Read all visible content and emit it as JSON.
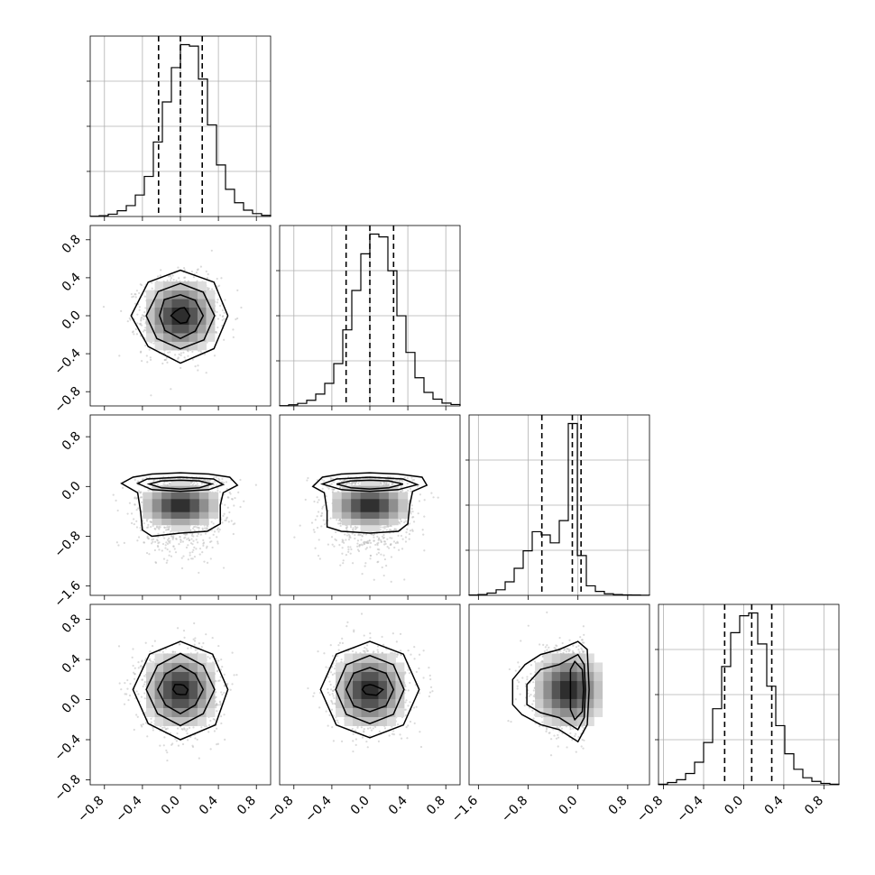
{
  "chart_data": {
    "type": "corner",
    "title": "",
    "n_params": 4,
    "ranges": [
      [
        -0.95,
        0.95
      ],
      [
        -0.95,
        0.95
      ],
      [
        -1.75,
        1.15
      ],
      [
        -0.85,
        0.95
      ]
    ],
    "ticks": [
      [
        -0.8,
        -0.4,
        0.0,
        0.4,
        0.8
      ],
      [
        -0.8,
        -0.4,
        0.0,
        0.4,
        0.8
      ],
      [
        -1.6,
        -0.8,
        0.0,
        0.8
      ],
      [
        -0.8,
        -0.4,
        0.0,
        0.4,
        0.8
      ]
    ],
    "tick_labels": [
      [
        "−0.8",
        "−0.4",
        "0.0",
        "0.4",
        "0.8"
      ],
      [
        "−0.8",
        "−0.4",
        "0.0",
        "0.4",
        "0.8"
      ],
      [
        "−1.6",
        "−0.8",
        "0.0",
        "0.8"
      ],
      [
        "−0.8",
        "−0.4",
        "0.0",
        "0.4",
        "0.8"
      ]
    ],
    "marginals": [
      {
        "param": 0,
        "bin_start": -0.95,
        "bin_width": 0.095,
        "counts": [
          1,
          3,
          8,
          20,
          38,
          75,
          140,
          260,
          400,
          520,
          600,
          595,
          480,
          320,
          180,
          95,
          48,
          22,
          10,
          4
        ],
        "quantiles": [
          -0.23,
          0.0,
          0.23
        ]
      },
      {
        "param": 1,
        "bin_start": -0.95,
        "bin_width": 0.095,
        "counts": [
          1,
          4,
          9,
          20,
          42,
          80,
          150,
          270,
          410,
          540,
          610,
          600,
          480,
          320,
          190,
          100,
          48,
          24,
          10,
          5
        ],
        "quantiles": [
          -0.25,
          0.0,
          0.25
        ]
      },
      {
        "param": 2,
        "bin_start": -1.75,
        "bin_width": 0.145,
        "counts": [
          2,
          5,
          14,
          35,
          85,
          170,
          280,
          400,
          380,
          330,
          470,
          1080,
          250,
          60,
          25,
          10,
          5,
          3,
          2,
          1
        ],
        "quantiles": [
          -0.58,
          -0.09,
          0.05
        ]
      },
      {
        "param": 3,
        "bin_start": -0.85,
        "bin_width": 0.09,
        "counts": [
          2,
          8,
          18,
          40,
          80,
          150,
          270,
          420,
          540,
          600,
          610,
          500,
          350,
          210,
          110,
          55,
          25,
          12,
          5,
          2
        ],
        "quantiles": [
          -0.19,
          0.08,
          0.28
        ]
      }
    ],
    "pairs": [
      {
        "x": 0,
        "y": 1,
        "mean": [
          0.0,
          0.0
        ],
        "sd": [
          0.2,
          0.2
        ],
        "contours": [
          {
            "rx": [
              0.5,
              0.5,
              0.44,
              0.48,
              0.52,
              0.48,
              0.46,
              0.5
            ],
            "ry": [
              0.52,
              0.5,
              0.48,
              0.5,
              0.48,
              0.46,
              0.5,
              0.49
            ]
          },
          {
            "rx": [
              0.36,
              0.34,
              0.35,
              0.33,
              0.36,
              0.35,
              0.34,
              0.35
            ],
            "ry": [
              0.36,
              0.35,
              0.34,
              0.36,
              0.35,
              0.34,
              0.35,
              0.36
            ]
          },
          {
            "rx": [
              0.24,
              0.22,
              0.23,
              0.24,
              0.22,
              0.23,
              0.24,
              0.22
            ],
            "ry": [
              0.24,
              0.23,
              0.22,
              0.24,
              0.23,
              0.22,
              0.24,
              0.23
            ]
          },
          {
            "rx": [
              0.1,
              0.06,
              0.05,
              0.08,
              0.1,
              0.07,
              0.05,
              0.09
            ],
            "ry": [
              0.1,
              0.12,
              0.08,
              0.06,
              0.05,
              0.06,
              0.08,
              0.1
            ]
          }
        ]
      },
      {
        "x": 0,
        "y": 2,
        "mean": [
          0.0,
          -0.3
        ],
        "sd": [
          0.22,
          0.35
        ],
        "contours": [
          {
            "pts": [
              [
                -0.62,
                0.05
              ],
              [
                -0.5,
                0.15
              ],
              [
                -0.3,
                0.2
              ],
              [
                0.0,
                0.22
              ],
              [
                0.3,
                0.2
              ],
              [
                0.52,
                0.15
              ],
              [
                0.6,
                0.02
              ],
              [
                0.45,
                -0.1
              ],
              [
                0.42,
                -0.3
              ],
              [
                0.42,
                -0.6
              ],
              [
                0.28,
                -0.72
              ],
              [
                0.0,
                -0.75
              ],
              [
                -0.3,
                -0.8
              ],
              [
                -0.4,
                -0.7
              ],
              [
                -0.42,
                -0.4
              ],
              [
                -0.45,
                -0.1
              ]
            ]
          },
          {
            "pts": [
              [
                -0.45,
                0.05
              ],
              [
                -0.35,
                0.12
              ],
              [
                0.0,
                0.15
              ],
              [
                0.35,
                0.12
              ],
              [
                0.45,
                0.03
              ],
              [
                0.3,
                -0.05
              ],
              [
                0.0,
                -0.08
              ],
              [
                -0.3,
                -0.05
              ]
            ]
          },
          {
            "pts": [
              [
                -0.33,
                0.04
              ],
              [
                -0.2,
                0.09
              ],
              [
                0.0,
                0.1
              ],
              [
                0.2,
                0.09
              ],
              [
                0.33,
                0.04
              ],
              [
                0.2,
                -0.02
              ],
              [
                0.0,
                -0.04
              ],
              [
                -0.2,
                -0.02
              ]
            ]
          }
        ]
      },
      {
        "x": 1,
        "y": 2,
        "mean": [
          0.0,
          -0.3
        ],
        "sd": [
          0.22,
          0.35
        ],
        "contours": [
          {
            "pts": [
              [
                -0.6,
                0.0
              ],
              [
                -0.5,
                0.15
              ],
              [
                -0.3,
                0.2
              ],
              [
                0.0,
                0.22
              ],
              [
                0.3,
                0.2
              ],
              [
                0.55,
                0.15
              ],
              [
                0.6,
                0.02
              ],
              [
                0.45,
                -0.08
              ],
              [
                0.42,
                -0.3
              ],
              [
                0.4,
                -0.6
              ],
              [
                0.3,
                -0.72
              ],
              [
                0.0,
                -0.75
              ],
              [
                -0.3,
                -0.72
              ],
              [
                -0.45,
                -0.65
              ],
              [
                -0.45,
                -0.4
              ],
              [
                -0.48,
                -0.1
              ]
            ]
          },
          {
            "pts": [
              [
                -0.5,
                0.04
              ],
              [
                -0.35,
                0.12
              ],
              [
                0.0,
                0.15
              ],
              [
                0.35,
                0.12
              ],
              [
                0.5,
                0.03
              ],
              [
                0.3,
                -0.05
              ],
              [
                0.0,
                -0.08
              ],
              [
                -0.3,
                -0.05
              ]
            ]
          },
          {
            "pts": [
              [
                -0.35,
                0.04
              ],
              [
                -0.2,
                0.09
              ],
              [
                0.0,
                0.1
              ],
              [
                0.2,
                0.09
              ],
              [
                0.35,
                0.04
              ],
              [
                0.2,
                -0.02
              ],
              [
                0.0,
                -0.04
              ],
              [
                -0.2,
                -0.02
              ]
            ]
          }
        ]
      },
      {
        "x": 0,
        "y": 3,
        "mean": [
          0.0,
          0.1
        ],
        "sd": [
          0.2,
          0.2
        ],
        "contours": [
          {
            "rx": [
              0.5,
              0.48,
              0.5,
              0.46,
              0.5,
              0.48,
              0.46,
              0.52
            ],
            "ry": [
              0.52,
              0.5,
              0.48,
              0.5,
              0.5,
              0.48,
              0.5,
              0.5
            ]
          },
          {
            "rx": [
              0.36,
              0.34,
              0.36,
              0.34,
              0.36,
              0.34,
              0.36,
              0.34
            ],
            "ry": [
              0.36,
              0.34,
              0.36,
              0.34,
              0.36,
              0.34,
              0.36,
              0.34
            ]
          },
          {
            "rx": [
              0.24,
              0.22,
              0.24,
              0.22,
              0.24,
              0.22,
              0.24,
              0.22
            ],
            "ry": [
              0.24,
              0.22,
              0.24,
              0.22,
              0.24,
              0.22,
              0.24,
              0.22
            ]
          },
          {
            "rx": [
              0.08,
              0.05,
              0.05,
              0.08,
              0.08,
              0.06,
              0.05,
              0.08
            ],
            "ry": [
              0.07,
              0.06,
              0.05,
              0.07,
              0.07,
              0.06,
              0.05,
              0.07
            ]
          }
        ]
      },
      {
        "x": 1,
        "y": 3,
        "mean": [
          0.0,
          0.1
        ],
        "sd": [
          0.2,
          0.2
        ],
        "contours": [
          {
            "rx": [
              0.52,
              0.5,
              0.48,
              0.5,
              0.52,
              0.5,
              0.48,
              0.5
            ],
            "ry": [
              0.52,
              0.5,
              0.48,
              0.5,
              0.52,
              0.5,
              0.48,
              0.5
            ]
          },
          {
            "rx": [
              0.36,
              0.35,
              0.34,
              0.35,
              0.36,
              0.35,
              0.34,
              0.35
            ],
            "ry": [
              0.36,
              0.35,
              0.34,
              0.35,
              0.36,
              0.35,
              0.34,
              0.35
            ]
          },
          {
            "rx": [
              0.25,
              0.24,
              0.23,
              0.24,
              0.25,
              0.24,
              0.23,
              0.24
            ],
            "ry": [
              0.24,
              0.23,
              0.22,
              0.23,
              0.24,
              0.23,
              0.22,
              0.23
            ]
          },
          {
            "rx": [
              0.14,
              0.05,
              0.05,
              0.08,
              0.08,
              0.06,
              0.05,
              0.1
            ],
            "ry": [
              0.07,
              0.06,
              0.05,
              0.05,
              0.06,
              0.06,
              0.05,
              0.08
            ]
          }
        ]
      },
      {
        "x": 2,
        "y": 3,
        "mean": [
          -0.15,
          0.1
        ],
        "sd": [
          0.3,
          0.2
        ],
        "contours": [
          {
            "pts": [
              [
                -1.05,
                0.2
              ],
              [
                -0.85,
                0.35
              ],
              [
                -0.6,
                0.45
              ],
              [
                -0.3,
                0.5
              ],
              [
                0.0,
                0.58
              ],
              [
                0.15,
                0.5
              ],
              [
                0.18,
                0.1
              ],
              [
                0.15,
                -0.25
              ],
              [
                0.0,
                -0.42
              ],
              [
                -0.3,
                -0.3
              ],
              [
                -0.6,
                -0.25
              ],
              [
                -0.9,
                -0.15
              ],
              [
                -1.05,
                -0.05
              ]
            ]
          },
          {
            "pts": [
              [
                -0.82,
                0.15
              ],
              [
                -0.6,
                0.3
              ],
              [
                -0.3,
                0.35
              ],
              [
                0.0,
                0.45
              ],
              [
                0.1,
                0.35
              ],
              [
                0.12,
                0.1
              ],
              [
                0.1,
                -0.18
              ],
              [
                0.0,
                -0.3
              ],
              [
                -0.3,
                -0.18
              ],
              [
                -0.6,
                -0.13
              ],
              [
                -0.82,
                -0.05
              ]
            ]
          },
          {
            "pts": [
              [
                -0.05,
                0.38
              ],
              [
                0.07,
                0.3
              ],
              [
                0.09,
                0.1
              ],
              [
                0.07,
                -0.12
              ],
              [
                -0.05,
                -0.2
              ],
              [
                -0.12,
                -0.1
              ],
              [
                -0.12,
                0.1
              ],
              [
                -0.12,
                0.3
              ]
            ]
          }
        ]
      }
    ]
  }
}
